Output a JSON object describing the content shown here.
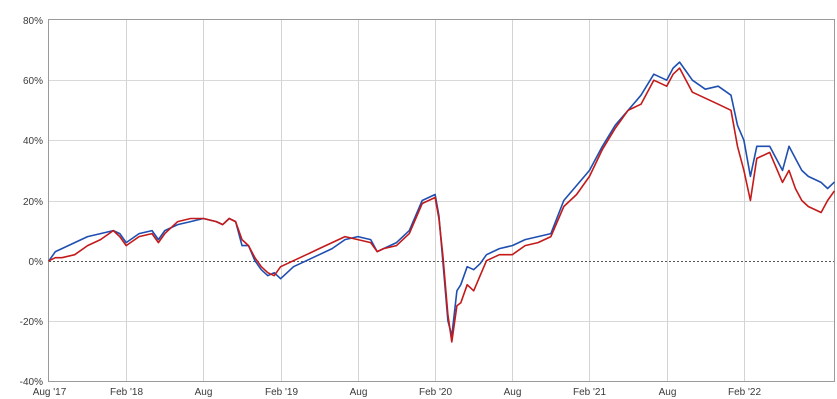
{
  "chart_data": {
    "type": "line",
    "title": "",
    "xlabel": "",
    "ylabel": "",
    "ylim": [
      -40,
      80
    ],
    "xlim": [
      0,
      61
    ],
    "grid": true,
    "legend": "none",
    "x_ticks": [
      {
        "label": "Aug '17",
        "x": 0
      },
      {
        "label": "Feb '18",
        "x": 6
      },
      {
        "label": "Aug",
        "x": 12
      },
      {
        "label": "Feb '19",
        "x": 18
      },
      {
        "label": "Aug",
        "x": 24
      },
      {
        "label": "Feb '20",
        "x": 30
      },
      {
        "label": "Aug",
        "x": 36
      },
      {
        "label": "Feb '21",
        "x": 42
      },
      {
        "label": "Aug",
        "x": 48
      },
      {
        "label": "Feb '22",
        "x": 54
      }
    ],
    "y_ticks": [
      {
        "label": "80%",
        "value": 80
      },
      {
        "label": "60%",
        "value": 60
      },
      {
        "label": "40%",
        "value": 40
      },
      {
        "label": "20%",
        "value": 20
      },
      {
        "label": "0%",
        "value": 0
      },
      {
        "label": "-20%",
        "value": -20
      },
      {
        "label": "-40%",
        "value": -40
      }
    ],
    "series": [
      {
        "color": "#1f4fb0",
        "points": [
          [
            0,
            0
          ],
          [
            0.5,
            3
          ],
          [
            1,
            4
          ],
          [
            2,
            6
          ],
          [
            3,
            8
          ],
          [
            4,
            9
          ],
          [
            5,
            10
          ],
          [
            5.5,
            9
          ],
          [
            6,
            6
          ],
          [
            7,
            9
          ],
          [
            8,
            10
          ],
          [
            8.5,
            7
          ],
          [
            9,
            10
          ],
          [
            10,
            12
          ],
          [
            11,
            13
          ],
          [
            12,
            14
          ],
          [
            13,
            13
          ],
          [
            13.5,
            12
          ],
          [
            14,
            14
          ],
          [
            14.5,
            13
          ],
          [
            15,
            5
          ],
          [
            15.5,
            5
          ],
          [
            16,
            0
          ],
          [
            16.5,
            -3
          ],
          [
            17,
            -5
          ],
          [
            17.5,
            -4
          ],
          [
            18,
            -6
          ],
          [
            18.5,
            -4
          ],
          [
            19,
            -2
          ],
          [
            20,
            0
          ],
          [
            21,
            2
          ],
          [
            22,
            4
          ],
          [
            23,
            7
          ],
          [
            24,
            8
          ],
          [
            25,
            7
          ],
          [
            25.5,
            3
          ],
          [
            26,
            4
          ],
          [
            27,
            6
          ],
          [
            28,
            10
          ],
          [
            29,
            20
          ],
          [
            30,
            22
          ],
          [
            30.3,
            15
          ],
          [
            30.6,
            0
          ],
          [
            31,
            -20
          ],
          [
            31.3,
            -25
          ],
          [
            31.7,
            -10
          ],
          [
            32,
            -8
          ],
          [
            32.5,
            -2
          ],
          [
            33,
            -3
          ],
          [
            33.5,
            -1
          ],
          [
            34,
            2
          ],
          [
            35,
            4
          ],
          [
            36,
            5
          ],
          [
            37,
            7
          ],
          [
            38,
            8
          ],
          [
            39,
            9
          ],
          [
            40,
            20
          ],
          [
            41,
            25
          ],
          [
            42,
            30
          ],
          [
            43,
            38
          ],
          [
            44,
            45
          ],
          [
            45,
            50
          ],
          [
            46,
            55
          ],
          [
            47,
            62
          ],
          [
            48,
            60
          ],
          [
            48.5,
            64
          ],
          [
            49,
            66
          ],
          [
            49.5,
            63
          ],
          [
            50,
            60
          ],
          [
            51,
            57
          ],
          [
            52,
            58
          ],
          [
            53,
            55
          ],
          [
            53.5,
            45
          ],
          [
            54,
            40
          ],
          [
            54.5,
            28
          ],
          [
            55,
            38
          ],
          [
            56,
            38
          ],
          [
            57,
            30
          ],
          [
            57.5,
            38
          ],
          [
            58,
            34
          ],
          [
            58.5,
            30
          ],
          [
            59,
            28
          ],
          [
            60,
            26
          ],
          [
            60.5,
            24
          ],
          [
            61,
            26
          ]
        ]
      },
      {
        "color": "#c41a1a",
        "points": [
          [
            0,
            0
          ],
          [
            0.5,
            1
          ],
          [
            1,
            1
          ],
          [
            2,
            2
          ],
          [
            3,
            5
          ],
          [
            4,
            7
          ],
          [
            5,
            10
          ],
          [
            5.5,
            8
          ],
          [
            6,
            5
          ],
          [
            7,
            8
          ],
          [
            8,
            9
          ],
          [
            8.5,
            6
          ],
          [
            9,
            9
          ],
          [
            10,
            13
          ],
          [
            11,
            14
          ],
          [
            12,
            14
          ],
          [
            13,
            13
          ],
          [
            13.5,
            12
          ],
          [
            14,
            14
          ],
          [
            14.5,
            13
          ],
          [
            15,
            7
          ],
          [
            15.5,
            5
          ],
          [
            16,
            1
          ],
          [
            16.5,
            -2
          ],
          [
            17,
            -4
          ],
          [
            17.5,
            -5
          ],
          [
            18,
            -2
          ],
          [
            18.5,
            -1
          ],
          [
            19,
            0
          ],
          [
            20,
            2
          ],
          [
            21,
            4
          ],
          [
            22,
            6
          ],
          [
            23,
            8
          ],
          [
            24,
            7
          ],
          [
            25,
            6
          ],
          [
            25.5,
            3
          ],
          [
            26,
            4
          ],
          [
            27,
            5
          ],
          [
            28,
            9
          ],
          [
            29,
            19
          ],
          [
            30,
            21
          ],
          [
            30.3,
            14
          ],
          [
            30.6,
            2
          ],
          [
            31,
            -18
          ],
          [
            31.3,
            -27
          ],
          [
            31.7,
            -15
          ],
          [
            32,
            -14
          ],
          [
            32.5,
            -8
          ],
          [
            33,
            -10
          ],
          [
            33.5,
            -5
          ],
          [
            34,
            0
          ],
          [
            35,
            2
          ],
          [
            36,
            2
          ],
          [
            37,
            5
          ],
          [
            38,
            6
          ],
          [
            39,
            8
          ],
          [
            40,
            18
          ],
          [
            41,
            22
          ],
          [
            42,
            28
          ],
          [
            43,
            37
          ],
          [
            44,
            44
          ],
          [
            45,
            50
          ],
          [
            46,
            52
          ],
          [
            47,
            60
          ],
          [
            48,
            58
          ],
          [
            48.5,
            62
          ],
          [
            49,
            64
          ],
          [
            49.5,
            60
          ],
          [
            50,
            56
          ],
          [
            51,
            54
          ],
          [
            52,
            52
          ],
          [
            53,
            50
          ],
          [
            53.5,
            38
          ],
          [
            54,
            30
          ],
          [
            54.5,
            20
          ],
          [
            55,
            34
          ],
          [
            56,
            36
          ],
          [
            57,
            26
          ],
          [
            57.5,
            30
          ],
          [
            58,
            24
          ],
          [
            58.5,
            20
          ],
          [
            59,
            18
          ],
          [
            60,
            16
          ],
          [
            60.5,
            20
          ],
          [
            61,
            23
          ]
        ]
      }
    ]
  }
}
